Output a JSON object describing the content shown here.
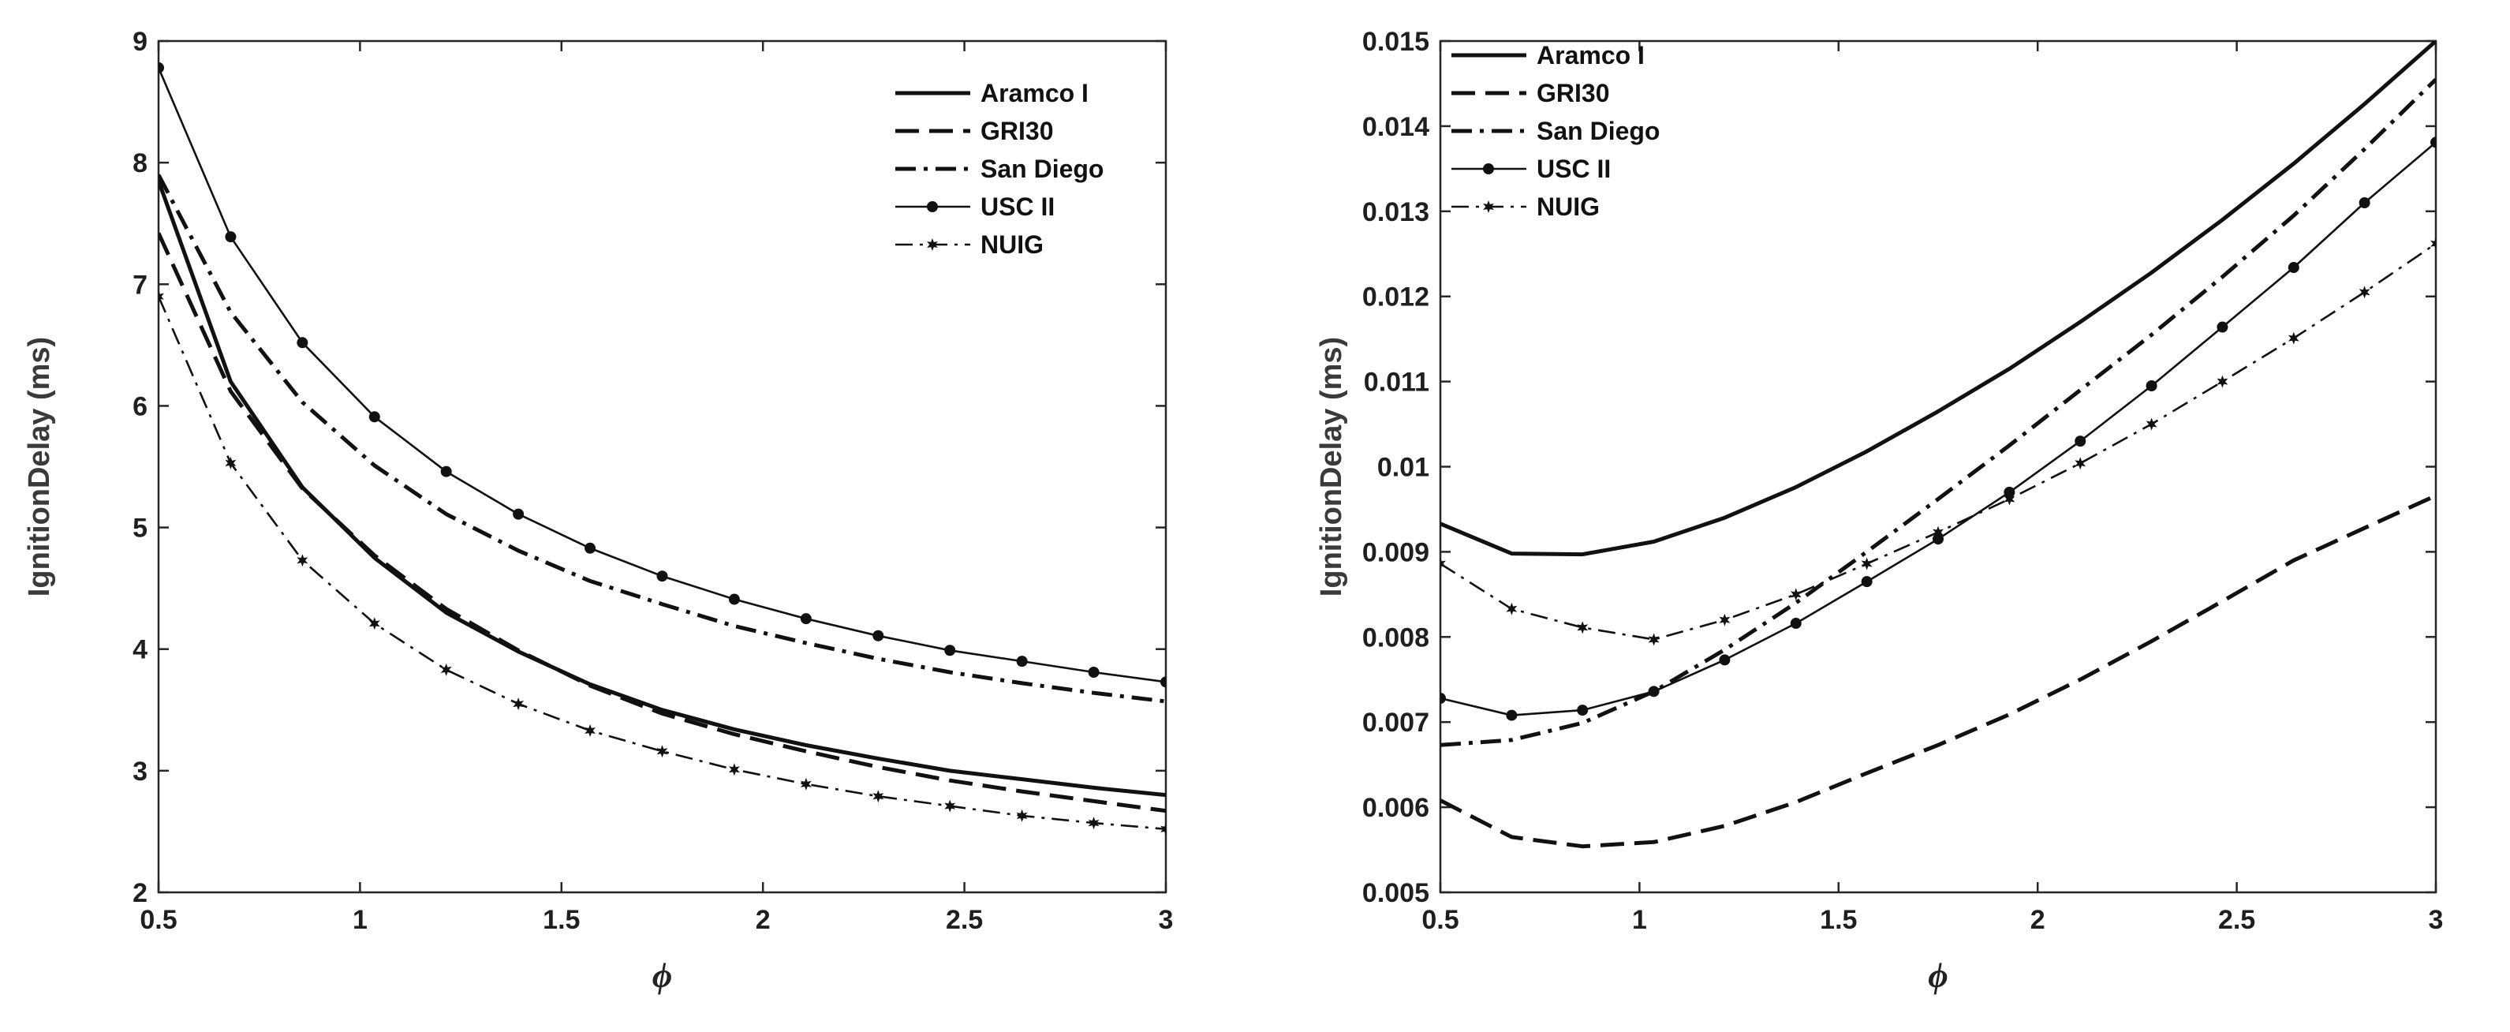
{
  "chart_data": [
    {
      "type": "line",
      "xlabel": "ϕ",
      "ylabel": "IgnitionDelay (ms)",
      "xlim": [
        0.5,
        3
      ],
      "ylim": [
        2,
        9
      ],
      "xticks": [
        0.5,
        1,
        1.5,
        2,
        2.5,
        3
      ],
      "xtick_labels": [
        "0.5",
        "1",
        "1.5",
        "2",
        "2.5",
        "3"
      ],
      "yticks": [
        2,
        3,
        4,
        5,
        6,
        7,
        8,
        9
      ],
      "ytick_labels": [
        "2",
        "3",
        "4",
        "5",
        "6",
        "7",
        "8",
        "9"
      ],
      "legend_position": "top-right",
      "x": [
        0.5,
        0.679,
        0.857,
        1.036,
        1.214,
        1.393,
        1.571,
        1.75,
        1.929,
        2.107,
        2.286,
        2.464,
        2.643,
        2.821,
        3.0
      ],
      "series": [
        {
          "name": "Aramco I",
          "style": "solid",
          "marker": "none",
          "values": [
            7.85,
            6.2,
            5.33,
            4.75,
            4.3,
            3.98,
            3.71,
            3.5,
            3.34,
            3.21,
            3.1,
            3.0,
            2.93,
            2.86,
            2.8
          ]
        },
        {
          "name": "GRI30",
          "style": "dashed",
          "marker": "none",
          "values": [
            7.42,
            6.12,
            5.32,
            4.77,
            4.33,
            3.99,
            3.7,
            3.47,
            3.3,
            3.16,
            3.03,
            2.92,
            2.83,
            2.75,
            2.67
          ]
        },
        {
          "name": "San Diego",
          "style": "dashdot",
          "marker": "none",
          "values": [
            7.9,
            6.77,
            6.03,
            5.51,
            5.11,
            4.81,
            4.56,
            4.37,
            4.19,
            4.05,
            3.92,
            3.81,
            3.72,
            3.64,
            3.57
          ]
        },
        {
          "name": "USC II",
          "style": "solid-thin",
          "marker": "dot",
          "values": [
            8.78,
            7.39,
            6.52,
            5.91,
            5.46,
            5.11,
            4.83,
            4.6,
            4.41,
            4.25,
            4.11,
            3.99,
            3.9,
            3.81,
            3.73
          ]
        },
        {
          "name": "NUIG",
          "style": "dashdot-thin",
          "marker": "star",
          "values": [
            6.9,
            5.53,
            4.73,
            4.21,
            3.83,
            3.55,
            3.33,
            3.16,
            3.01,
            2.89,
            2.79,
            2.71,
            2.63,
            2.57,
            2.52
          ]
        }
      ]
    },
    {
      "type": "line",
      "xlabel": "ϕ",
      "ylabel": "IgnitionDelay (ms)",
      "xlim": [
        0.5,
        3
      ],
      "ylim": [
        0.005,
        0.015
      ],
      "xticks": [
        0.5,
        1,
        1.5,
        2,
        2.5,
        3
      ],
      "xtick_labels": [
        "0.5",
        "1",
        "1.5",
        "2",
        "2.5",
        "3"
      ],
      "yticks": [
        0.005,
        0.006,
        0.007,
        0.008,
        0.009,
        0.01,
        0.011,
        0.012,
        0.013,
        0.014,
        0.015
      ],
      "ytick_labels": [
        "0.005",
        "0.006",
        "0.007",
        "0.008",
        "0.009",
        "0.01",
        "0.011",
        "0.012",
        "0.013",
        "0.014",
        "0.015"
      ],
      "legend_position": "top-left",
      "x": [
        0.5,
        0.679,
        0.857,
        1.036,
        1.214,
        1.393,
        1.571,
        1.75,
        1.929,
        2.107,
        2.286,
        2.464,
        2.643,
        2.821,
        3.0
      ],
      "series": [
        {
          "name": "Aramco I",
          "style": "solid",
          "marker": "none",
          "values": [
            0.00933,
            0.00898,
            0.00897,
            0.00912,
            0.0094,
            0.00976,
            0.01018,
            0.01065,
            0.01115,
            0.0117,
            0.01228,
            0.0129,
            0.01356,
            0.01426,
            0.015
          ]
        },
        {
          "name": "GRI30",
          "style": "dashed",
          "marker": "none",
          "values": [
            0.00608,
            0.00565,
            0.00554,
            0.00559,
            0.00578,
            0.00606,
            0.0064,
            0.00673,
            0.00709,
            0.0075,
            0.00795,
            0.00842,
            0.0089,
            0.00928,
            0.00966
          ]
        },
        {
          "name": "San Diego",
          "style": "dashdot",
          "marker": "none",
          "values": [
            0.00673,
            0.00679,
            0.00699,
            0.00736,
            0.00785,
            0.0084,
            0.009,
            0.00962,
            0.01025,
            0.0109,
            0.01155,
            0.01223,
            0.01295,
            0.01373,
            0.01455
          ]
        },
        {
          "name": "USC II",
          "style": "solid-thin",
          "marker": "dot",
          "values": [
            0.00728,
            0.00708,
            0.00714,
            0.00736,
            0.00773,
            0.00816,
            0.00865,
            0.00915,
            0.0097,
            0.0103,
            0.01095,
            0.01164,
            0.01234,
            0.0131,
            0.01381
          ]
        },
        {
          "name": "NUIG",
          "style": "dashdot-thin",
          "marker": "star",
          "values": [
            0.00886,
            0.00833,
            0.00811,
            0.00797,
            0.0082,
            0.0085,
            0.00886,
            0.00923,
            0.00962,
            0.01004,
            0.0105,
            0.011,
            0.01151,
            0.01205,
            0.01262
          ]
        }
      ]
    }
  ]
}
